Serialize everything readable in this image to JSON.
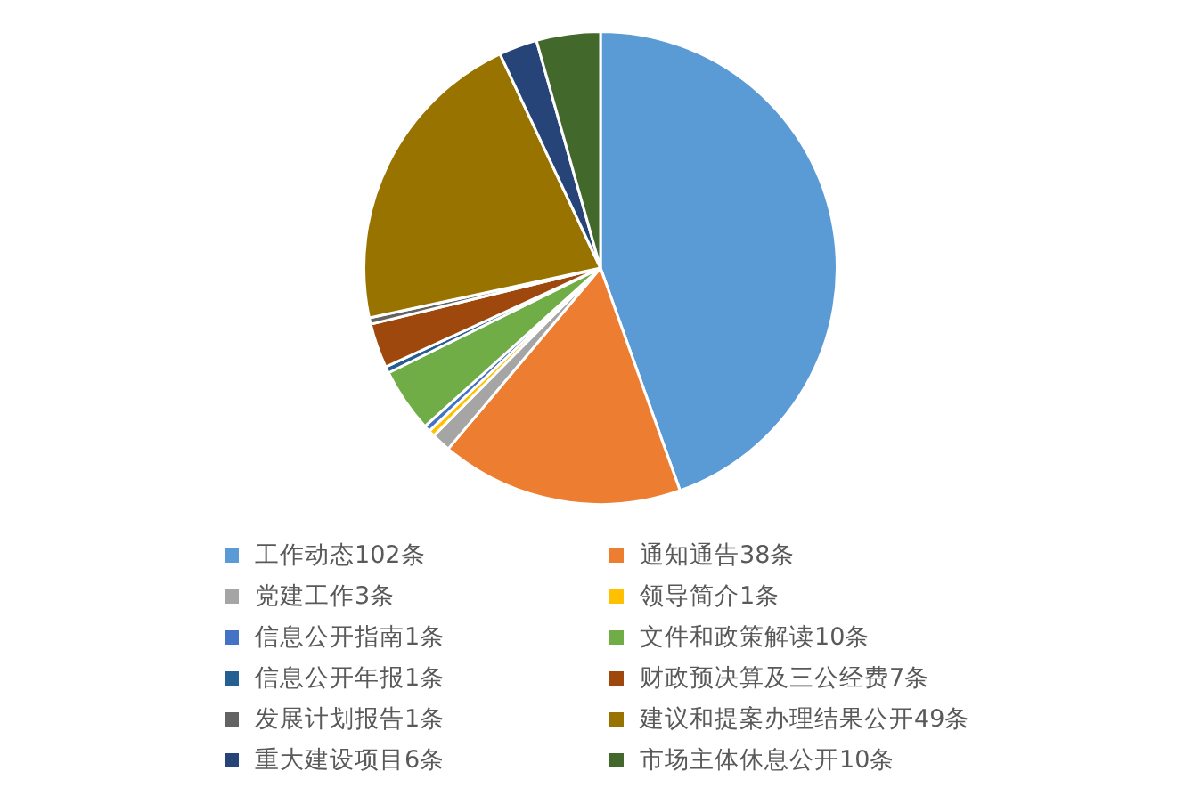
{
  "chart_data": {
    "type": "pie",
    "categories": [
      "工作动态102条",
      "通知通告38条",
      "党建工作3条",
      "领导简介1条",
      "信息公开指南1条",
      "文件和政策解读10条",
      "信息公开年报1条",
      "财政预决算及三公经费7条",
      "发展计划报告1条",
      "建议和提案办理结果公开49条",
      "重大建设项目6条",
      "市场主体休息公开10条"
    ],
    "values": [
      102,
      38,
      3,
      1,
      1,
      10,
      1,
      7,
      1,
      49,
      6,
      10
    ],
    "colors": [
      "#5b9bd5",
      "#ed7d31",
      "#a5a5a5",
      "#ffc000",
      "#4472c4",
      "#70ad47",
      "#255e91",
      "#9e480e",
      "#636363",
      "#997300",
      "#264478",
      "#43682b"
    ],
    "legend": "bottom"
  }
}
